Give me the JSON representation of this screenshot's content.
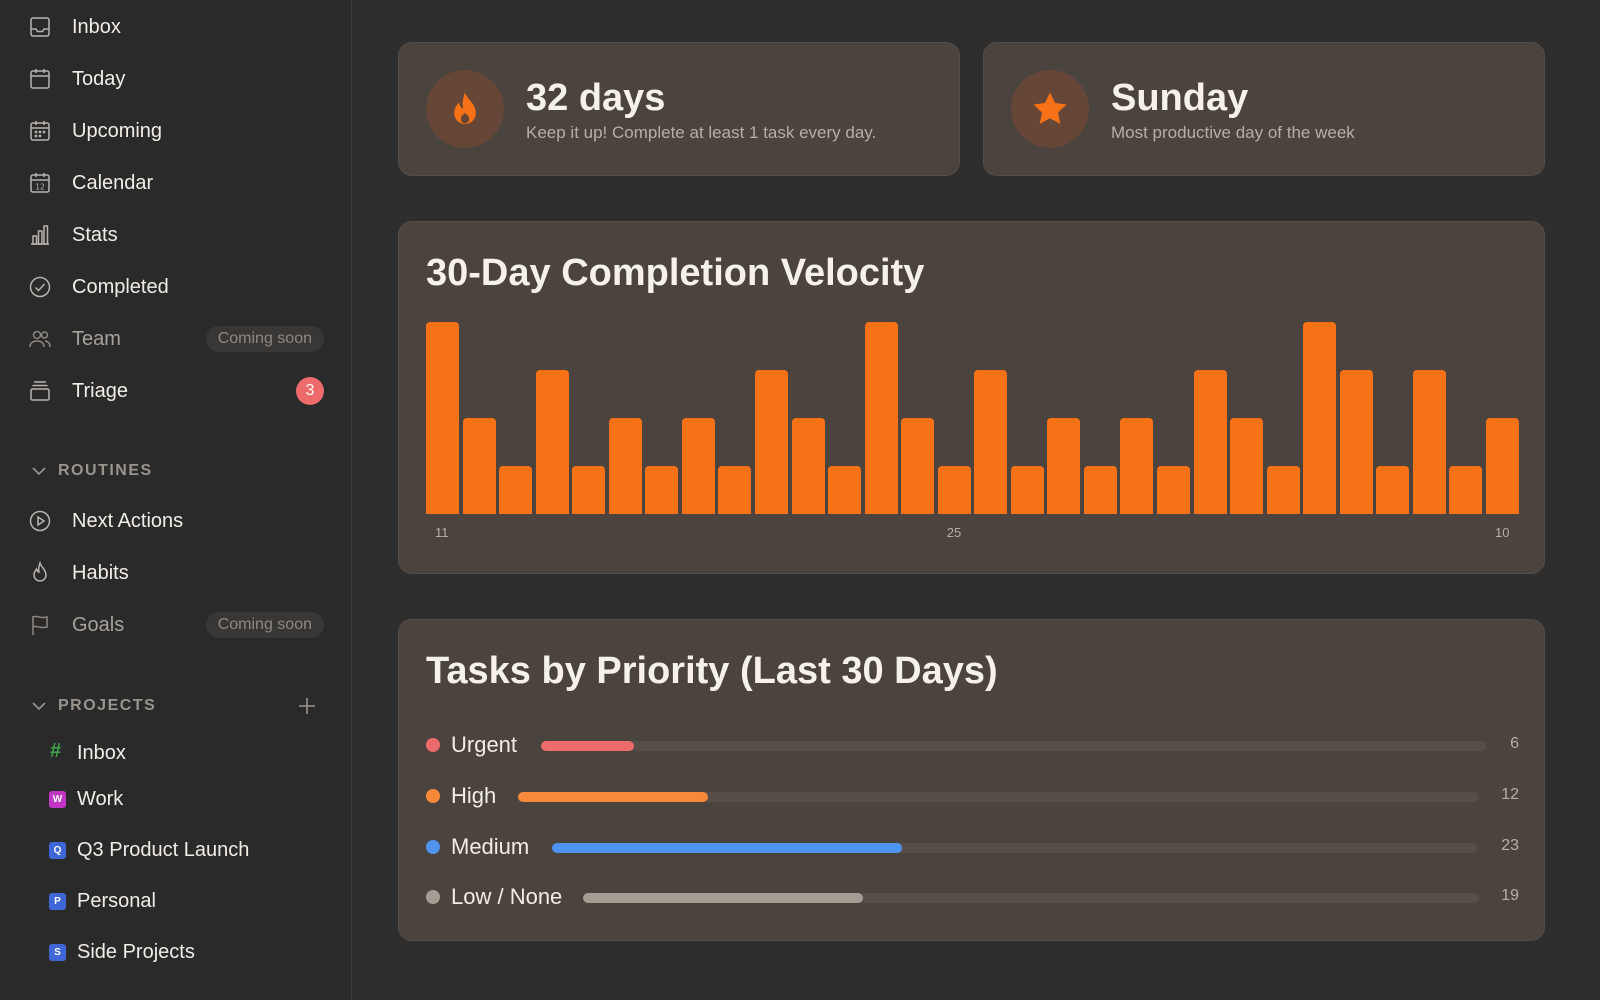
{
  "sidebar": {
    "nav": [
      {
        "label": "Inbox",
        "icon": "inbox-icon"
      },
      {
        "label": "Today",
        "icon": "calendar-today-icon"
      },
      {
        "label": "Upcoming",
        "icon": "calendar-upcoming-icon"
      },
      {
        "label": "Calendar",
        "icon": "calendar-icon"
      },
      {
        "label": "Stats",
        "icon": "bar-chart-icon"
      },
      {
        "label": "Completed",
        "icon": "check-circle-icon"
      },
      {
        "label": "Team",
        "icon": "people-icon",
        "pill": "Coming soon"
      },
      {
        "label": "Triage",
        "icon": "stack-icon",
        "badge": "3"
      }
    ],
    "routines": {
      "label": "ROUTINES",
      "items": [
        {
          "label": "Next Actions",
          "icon": "play-circle-icon"
        },
        {
          "label": "Habits",
          "icon": "flame-icon"
        },
        {
          "label": "Goals",
          "icon": "flag-icon",
          "pill": "Coming soon"
        }
      ]
    },
    "projects": {
      "label": "PROJECTS",
      "items": [
        {
          "label": "Inbox",
          "mark": "#",
          "color": "#3fa34d"
        },
        {
          "label": "Work",
          "mark": "W",
          "color": "#c236c6"
        },
        {
          "label": "Q3 Product Launch",
          "mark": "Q",
          "color": "#3f67d8"
        },
        {
          "label": "Personal",
          "mark": "P",
          "color": "#3f67d8"
        },
        {
          "label": "Side Projects",
          "mark": "S",
          "color": "#3f67d8"
        }
      ]
    }
  },
  "stats": {
    "streak": {
      "value": "32 days",
      "subtitle": "Keep it up! Complete at least 1 task every day.",
      "icon": "flame-icon"
    },
    "best_day": {
      "value": "Sunday",
      "subtitle": "Most productive day of the week",
      "icon": "star-icon"
    }
  },
  "velocity": {
    "title": "30-Day Completion Velocity",
    "chart_data": {
      "type": "bar",
      "title": "30-Day Completion Velocity",
      "values": [
        4,
        2,
        1,
        3,
        1,
        2,
        1,
        2,
        1,
        3,
        2,
        1,
        4,
        2,
        1,
        3,
        1,
        2,
        1,
        2,
        1,
        3,
        2,
        1,
        4,
        3,
        1,
        3,
        1,
        2
      ],
      "tick_labels": [
        {
          "index": 0,
          "label": "11"
        },
        {
          "index": 14,
          "label": "25"
        },
        {
          "index": 29,
          "label": "10"
        }
      ],
      "color": "#f77216"
    }
  },
  "priority": {
    "title": "Tasks by Priority (Last 30 Days)",
    "max": 23,
    "rows": [
      {
        "label": "Urgent",
        "count": 6,
        "color": "#ee6b6b"
      },
      {
        "label": "High",
        "count": 12,
        "color": "#f78a3a"
      },
      {
        "label": "Medium",
        "count": 23,
        "color": "#4f93f0"
      },
      {
        "label": "Low / None",
        "count": 19,
        "color": "#a59c93"
      }
    ]
  }
}
